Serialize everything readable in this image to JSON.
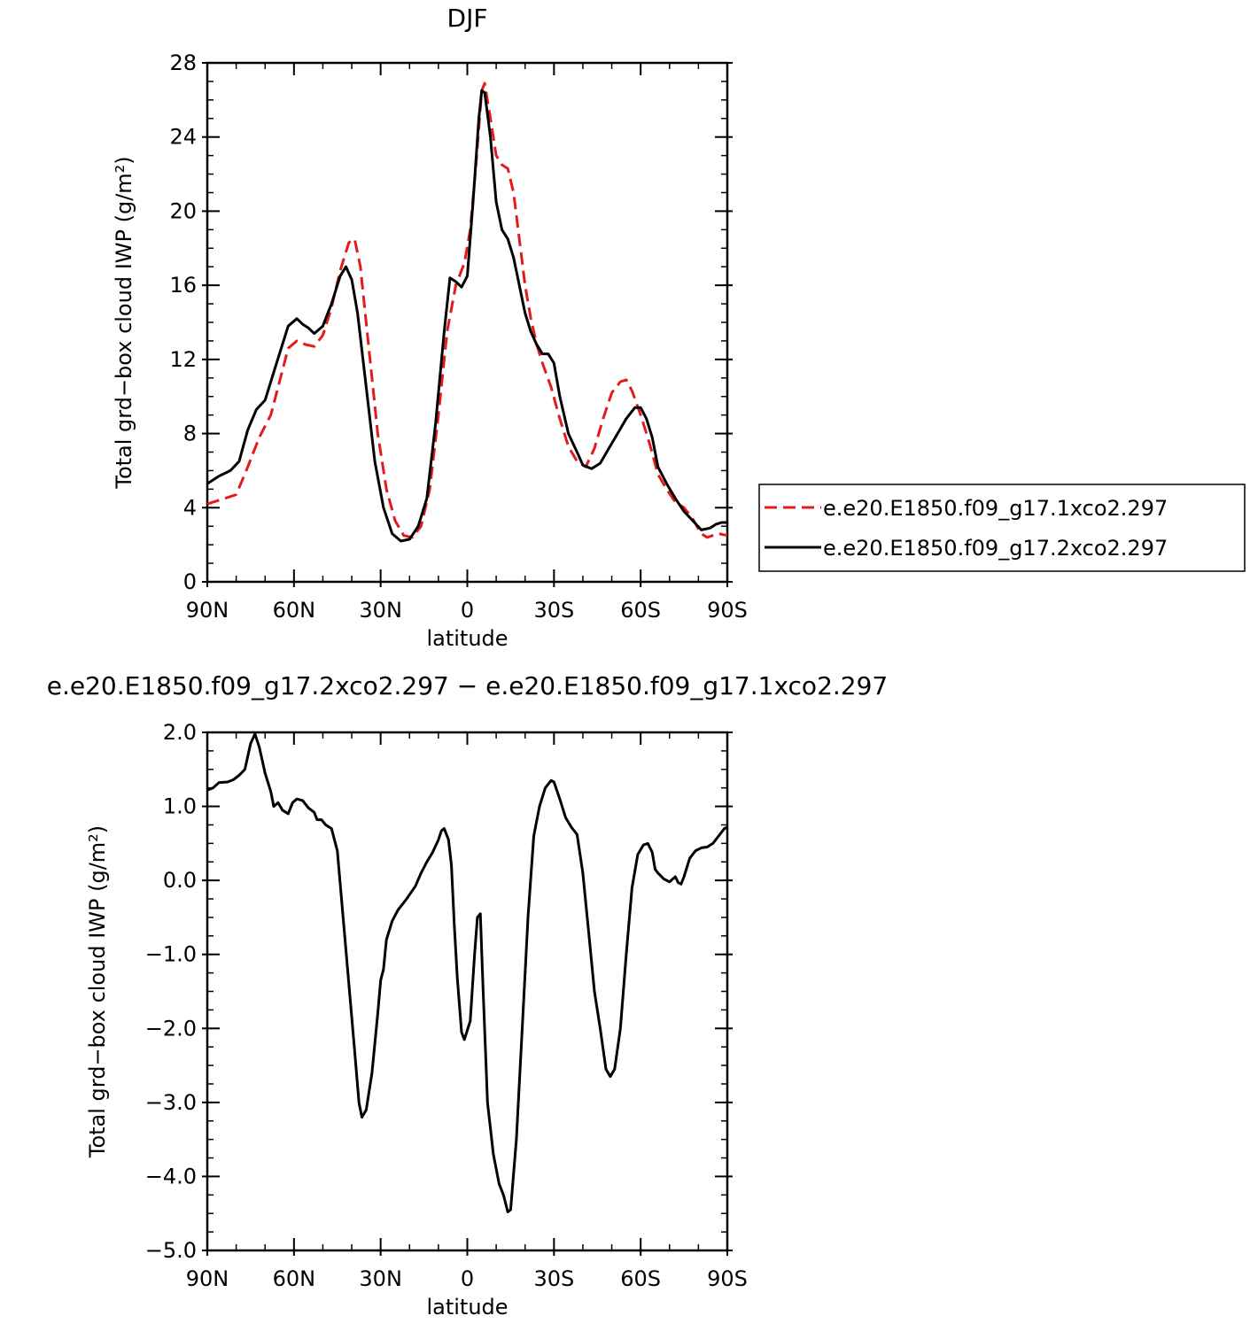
{
  "chart_data": [
    {
      "type": "line",
      "title": "DJF",
      "xlabel": "latitude",
      "ylabel": "Total grd−box cloud IWP (g/m²)",
      "xlim": [
        90,
        -90
      ],
      "ylim": [
        0,
        28
      ],
      "xticks": [
        {
          "value": 90,
          "label": "90N"
        },
        {
          "value": 60,
          "label": "60N"
        },
        {
          "value": 30,
          "label": "30N"
        },
        {
          "value": 0,
          "label": "0"
        },
        {
          "value": -30,
          "label": "30S"
        },
        {
          "value": -60,
          "label": "60S"
        },
        {
          "value": -90,
          "label": "90S"
        }
      ],
      "yticks": [
        {
          "value": 0,
          "label": "0"
        },
        {
          "value": 4,
          "label": "4"
        },
        {
          "value": 8,
          "label": "8"
        },
        {
          "value": 12,
          "label": "12"
        },
        {
          "value": 16,
          "label": "16"
        },
        {
          "value": 20,
          "label": "20"
        },
        {
          "value": 24,
          "label": "24"
        },
        {
          "value": 28,
          "label": "28"
        }
      ],
      "legend": "right",
      "series": [
        {
          "name": "e.e20.E1850.f09_g17.1xco2.297",
          "color": "#e41a1c",
          "dash": true,
          "points": [
            [
              90,
              4.2
            ],
            [
              84,
              4.5
            ],
            [
              80,
              4.7
            ],
            [
              76,
              6.2
            ],
            [
              72,
              7.8
            ],
            [
              68,
              9.0
            ],
            [
              65,
              10.8
            ],
            [
              62,
              12.6
            ],
            [
              59,
              13.0
            ],
            [
              56,
              12.8
            ],
            [
              53,
              12.7
            ],
            [
              50,
              13.3
            ],
            [
              47,
              14.8
            ],
            [
              44,
              16.8
            ],
            [
              41,
              18.3
            ],
            [
              39,
              18.5
            ],
            [
              37,
              17.0
            ],
            [
              34,
              12.5
            ],
            [
              31,
              8.0
            ],
            [
              28,
              5.0
            ],
            [
              25,
              3.3
            ],
            [
              22,
              2.5
            ],
            [
              19,
              2.4
            ],
            [
              16,
              3.0
            ],
            [
              13,
              5.0
            ],
            [
              10,
              9.0
            ],
            [
              7,
              13.5
            ],
            [
              4,
              16.0
            ],
            [
              1,
              17.2
            ],
            [
              -1,
              19.0
            ],
            [
              -3,
              22.5
            ],
            [
              -5,
              26.5
            ],
            [
              -6,
              26.9
            ],
            [
              -8,
              25.0
            ],
            [
              -10,
              23.0
            ],
            [
              -12,
              22.5
            ],
            [
              -14,
              22.3
            ],
            [
              -16,
              21.0
            ],
            [
              -18,
              18.5
            ],
            [
              -20,
              16.0
            ],
            [
              -22,
              14.2
            ],
            [
              -24,
              12.8
            ],
            [
              -26,
              11.8
            ],
            [
              -29,
              10.5
            ],
            [
              -32,
              8.8
            ],
            [
              -35,
              7.3
            ],
            [
              -38,
              6.5
            ],
            [
              -41,
              6.2
            ],
            [
              -44,
              7.2
            ],
            [
              -47,
              8.8
            ],
            [
              -50,
              10.2
            ],
            [
              -53,
              10.8
            ],
            [
              -55,
              10.9
            ],
            [
              -57,
              10.3
            ],
            [
              -60,
              9.0
            ],
            [
              -63,
              7.5
            ],
            [
              -66,
              5.8
            ],
            [
              -69,
              5.0
            ],
            [
              -72,
              4.3
            ],
            [
              -75,
              4.0
            ],
            [
              -78,
              3.4
            ],
            [
              -81,
              2.6
            ],
            [
              -83,
              2.4
            ],
            [
              -85,
              2.5
            ],
            [
              -87,
              2.6
            ],
            [
              -90,
              2.5
            ]
          ]
        },
        {
          "name": "e.e20.E1850.f09_g17.2xco2.297",
          "color": "#000000",
          "dash": false,
          "points": [
            [
              90,
              5.3
            ],
            [
              86,
              5.7
            ],
            [
              82,
              6.0
            ],
            [
              79,
              6.5
            ],
            [
              76,
              8.2
            ],
            [
              73,
              9.3
            ],
            [
              70,
              9.8
            ],
            [
              68,
              10.8
            ],
            [
              65,
              12.3
            ],
            [
              62,
              13.8
            ],
            [
              59,
              14.2
            ],
            [
              57,
              13.9
            ],
            [
              55,
              13.7
            ],
            [
              53,
              13.4
            ],
            [
              50,
              13.8
            ],
            [
              47,
              15.0
            ],
            [
              44,
              16.5
            ],
            [
              42,
              17.0
            ],
            [
              40,
              16.3
            ],
            [
              38,
              14.5
            ],
            [
              35,
              10.5
            ],
            [
              32,
              6.5
            ],
            [
              29,
              4.0
            ],
            [
              26,
              2.6
            ],
            [
              23,
              2.2
            ],
            [
              20,
              2.3
            ],
            [
              17,
              3.0
            ],
            [
              14,
              4.5
            ],
            [
              11,
              8.5
            ],
            [
              8,
              13.5
            ],
            [
              6,
              16.4
            ],
            [
              4,
              16.2
            ],
            [
              2,
              15.9
            ],
            [
              0,
              16.5
            ],
            [
              -2,
              20.5
            ],
            [
              -4,
              25.0
            ],
            [
              -5,
              26.5
            ],
            [
              -6,
              26.4
            ],
            [
              -8,
              24.0
            ],
            [
              -10,
              20.5
            ],
            [
              -12,
              19.0
            ],
            [
              -14,
              18.5
            ],
            [
              -16,
              17.5
            ],
            [
              -18,
              16.0
            ],
            [
              -20,
              14.5
            ],
            [
              -22,
              13.5
            ],
            [
              -24,
              12.8
            ],
            [
              -26,
              12.3
            ],
            [
              -28,
              12.3
            ],
            [
              -30,
              11.8
            ],
            [
              -32,
              10.0
            ],
            [
              -35,
              8.0
            ],
            [
              -38,
              7.0
            ],
            [
              -40,
              6.3
            ],
            [
              -43,
              6.1
            ],
            [
              -46,
              6.4
            ],
            [
              -49,
              7.2
            ],
            [
              -52,
              8.0
            ],
            [
              -55,
              8.8
            ],
            [
              -58,
              9.4
            ],
            [
              -60,
              9.4
            ],
            [
              -62,
              8.8
            ],
            [
              -64,
              7.8
            ],
            [
              -66,
              6.2
            ],
            [
              -69,
              5.3
            ],
            [
              -72,
              4.5
            ],
            [
              -75,
              3.8
            ],
            [
              -78,
              3.3
            ],
            [
              -81,
              2.8
            ],
            [
              -84,
              2.9
            ],
            [
              -86,
              3.1
            ],
            [
              -88,
              3.2
            ],
            [
              -90,
              3.2
            ]
          ]
        }
      ]
    },
    {
      "type": "line",
      "title": "e.e20.E1850.f09_g17.2xco2.297 − e.e20.E1850.f09_g17.1xco2.297",
      "xlabel": "latitude",
      "ylabel": "Total grd−box cloud IWP (g/m²)",
      "xlim": [
        90,
        -90
      ],
      "ylim": [
        -5.0,
        2.0
      ],
      "xticks": [
        {
          "value": 90,
          "label": "90N"
        },
        {
          "value": 60,
          "label": "60N"
        },
        {
          "value": 30,
          "label": "30N"
        },
        {
          "value": 0,
          "label": "0"
        },
        {
          "value": -30,
          "label": "30S"
        },
        {
          "value": -60,
          "label": "60S"
        },
        {
          "value": -90,
          "label": "90S"
        }
      ],
      "yticks": [
        {
          "value": 2.0,
          "label": "2.0"
        },
        {
          "value": 1.0,
          "label": "1.0"
        },
        {
          "value": 0.0,
          "label": "0.0"
        },
        {
          "value": -1.0,
          "label": "−1.0"
        },
        {
          "value": -2.0,
          "label": "−2.0"
        },
        {
          "value": -3.0,
          "label": "−3.0"
        },
        {
          "value": -4.0,
          "label": "−4.0"
        },
        {
          "value": -5.0,
          "label": "−5.0"
        }
      ],
      "series": [
        {
          "color": "#000000",
          "dash": false,
          "points": [
            [
              90,
              1.22
            ],
            [
              88,
              1.25
            ],
            [
              86,
              1.32
            ],
            [
              83,
              1.33
            ],
            [
              81,
              1.36
            ],
            [
              79,
              1.42
            ],
            [
              77,
              1.5
            ],
            [
              75,
              1.85
            ],
            [
              73.5,
              1.98
            ],
            [
              72,
              1.8
            ],
            [
              70,
              1.45
            ],
            [
              68,
              1.2
            ],
            [
              67,
              1.0
            ],
            [
              65.5,
              1.05
            ],
            [
              64,
              0.95
            ],
            [
              62,
              0.9
            ],
            [
              60.5,
              1.05
            ],
            [
              59,
              1.1
            ],
            [
              57,
              1.08
            ],
            [
              55,
              0.98
            ],
            [
              53,
              0.92
            ],
            [
              52,
              0.82
            ],
            [
              50.5,
              0.82
            ],
            [
              49,
              0.75
            ],
            [
              47,
              0.7
            ],
            [
              45,
              0.4
            ],
            [
              43,
              -0.5
            ],
            [
              41,
              -1.4
            ],
            [
              39,
              -2.3
            ],
            [
              37.5,
              -3.0
            ],
            [
              36.5,
              -3.2
            ],
            [
              35,
              -3.1
            ],
            [
              33,
              -2.6
            ],
            [
              31,
              -1.8
            ],
            [
              30,
              -1.35
            ],
            [
              29,
              -1.2
            ],
            [
              28,
              -0.8
            ],
            [
              26,
              -0.55
            ],
            [
              24,
              -0.4
            ],
            [
              21,
              -0.25
            ],
            [
              18,
              -0.08
            ],
            [
              16,
              0.1
            ],
            [
              14,
              0.25
            ],
            [
              12,
              0.38
            ],
            [
              10,
              0.55
            ],
            [
              9,
              0.67
            ],
            [
              8,
              0.7
            ],
            [
              6.5,
              0.55
            ],
            [
              5.5,
              0.2
            ],
            [
              4.5,
              -0.6
            ],
            [
              3.5,
              -1.3
            ],
            [
              2,
              -2.05
            ],
            [
              1,
              -2.15
            ],
            [
              -1,
              -1.9
            ],
            [
              -2.5,
              -1.0
            ],
            [
              -3.5,
              -0.5
            ],
            [
              -4.5,
              -0.45
            ],
            [
              -5.5,
              -1.5
            ],
            [
              -7,
              -3.0
            ],
            [
              -9,
              -3.7
            ],
            [
              -11,
              -4.1
            ],
            [
              -12.5,
              -4.25
            ],
            [
              -14,
              -4.48
            ],
            [
              -15,
              -4.45
            ],
            [
              -17,
              -3.5
            ],
            [
              -19,
              -2.0
            ],
            [
              -21,
              -0.5
            ],
            [
              -23,
              0.6
            ],
            [
              -25,
              1.0
            ],
            [
              -27,
              1.25
            ],
            [
              -29,
              1.35
            ],
            [
              -30,
              1.33
            ],
            [
              -32,
              1.1
            ],
            [
              -34,
              0.85
            ],
            [
              -36,
              0.72
            ],
            [
              -38,
              0.62
            ],
            [
              -40,
              0.1
            ],
            [
              -42,
              -0.7
            ],
            [
              -44,
              -1.5
            ],
            [
              -46,
              -2.0
            ],
            [
              -48,
              -2.55
            ],
            [
              -49.5,
              -2.65
            ],
            [
              -51,
              -2.55
            ],
            [
              -53,
              -2.0
            ],
            [
              -55,
              -1.0
            ],
            [
              -57,
              -0.1
            ],
            [
              -59,
              0.35
            ],
            [
              -61,
              0.48
            ],
            [
              -62.5,
              0.5
            ],
            [
              -64,
              0.38
            ],
            [
              -65,
              0.15
            ],
            [
              -66,
              0.1
            ],
            [
              -68,
              0.02
            ],
            [
              -70,
              -0.02
            ],
            [
              -72,
              0.05
            ],
            [
              -73,
              -0.03
            ],
            [
              -74,
              -0.05
            ],
            [
              -75,
              0.05
            ],
            [
              -77,
              0.3
            ],
            [
              -79,
              0.4
            ],
            [
              -81,
              0.44
            ],
            [
              -83,
              0.45
            ],
            [
              -85,
              0.5
            ],
            [
              -87,
              0.6
            ],
            [
              -89,
              0.7
            ],
            [
              -90,
              0.72
            ]
          ]
        }
      ]
    }
  ]
}
